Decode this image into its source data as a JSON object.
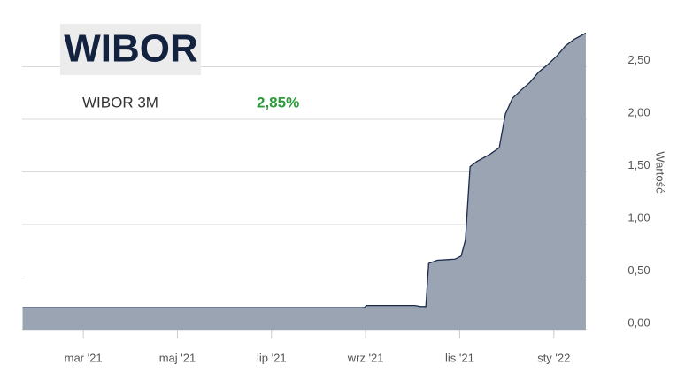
{
  "chart_data": {
    "type": "area",
    "title": "WIBOR",
    "current_label": "2,85%",
    "y_label": "Wartość",
    "grid": true,
    "xlim": [
      1.7,
      13.7
    ],
    "xticks": [
      {
        "value": 3,
        "label": "mar '21"
      },
      {
        "value": 5,
        "label": "maj '21"
      },
      {
        "value": 7,
        "label": "lip '21"
      },
      {
        "value": 9,
        "label": "wrz '21"
      },
      {
        "value": 11,
        "label": "lis '21"
      },
      {
        "value": 13,
        "label": "sty '22"
      }
    ],
    "ylim": [
      0,
      3
    ],
    "yticks": [
      {
        "value": 0,
        "label": "0,00"
      },
      {
        "value": 0.5,
        "label": "0,50"
      },
      {
        "value": 1,
        "label": "1,00"
      },
      {
        "value": 1.5,
        "label": "1,50"
      },
      {
        "value": 2,
        "label": "2,00"
      },
      {
        "value": 2.5,
        "label": "2,50"
      }
    ],
    "x": [
      1.71,
      8.97,
      9.02,
      10.05,
      10.17,
      10.28,
      10.34,
      10.52,
      10.9,
      11.03,
      11.12,
      11.22,
      11.37,
      11.65,
      11.84,
      11.97,
      12.12,
      12.31,
      12.49,
      12.68,
      12.87,
      13.06,
      13.25,
      13.43,
      13.68
    ],
    "series": [
      {
        "name": "WIBOR 3M",
        "color": "#9aa4b3",
        "line_color": "#1b2b4b",
        "values": [
          0.21,
          0.21,
          0.23,
          0.23,
          0.22,
          0.22,
          0.63,
          0.66,
          0.67,
          0.7,
          0.85,
          1.55,
          1.6,
          1.67,
          1.73,
          2.05,
          2.2,
          2.28,
          2.35,
          2.45,
          2.52,
          2.6,
          2.7,
          2.76,
          2.82
        ]
      }
    ]
  }
}
